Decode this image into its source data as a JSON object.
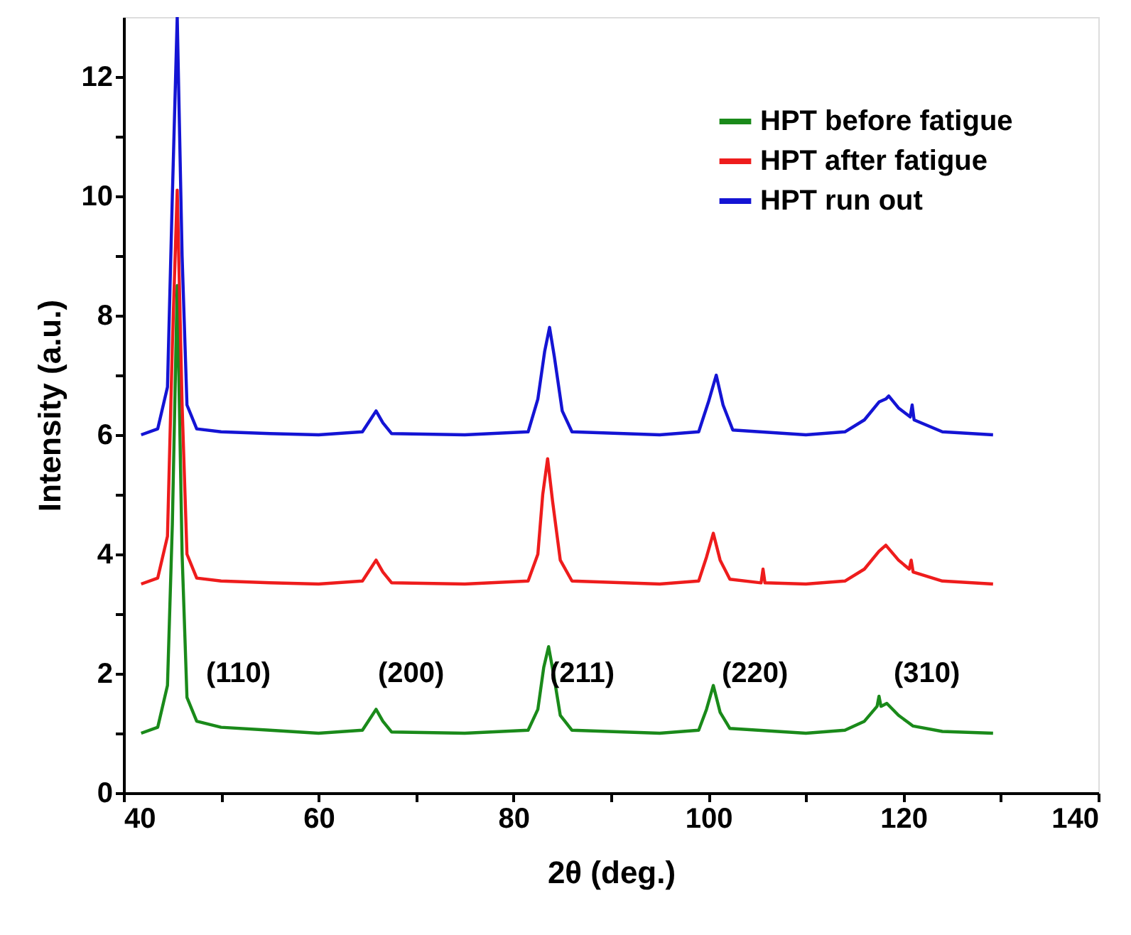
{
  "chart_data": {
    "type": "line",
    "xlabel": "2θ (deg.)",
    "ylabel": "Intensity (a.u.)",
    "xlim": [
      40,
      140
    ],
    "ylim": [
      0,
      13
    ],
    "xticks": [
      40,
      {
        "value": 50,
        "label": null
      },
      60,
      {
        "value": 70,
        "label": null
      },
      80,
      {
        "value": 90,
        "label": null
      },
      100,
      {
        "value": 110,
        "label": null
      },
      120,
      {
        "value": 130,
        "label": null
      },
      140
    ],
    "yticks": [
      0,
      {
        "value": 1,
        "label": null
      },
      2,
      {
        "value": 3,
        "label": null
      },
      4,
      {
        "value": 5,
        "label": null
      },
      6,
      {
        "value": 7,
        "label": null
      },
      8,
      {
        "value": 9,
        "label": null
      },
      10,
      {
        "value": 11,
        "label": null
      },
      12
    ],
    "grid": false,
    "legend": "top right",
    "marker": "none",
    "line_style": "solid",
    "series": [
      {
        "name": "HPT before fatigue",
        "color": "#1a8a1a",
        "x": [
          41.8,
          43.5,
          44.5,
          45.0,
          45.5,
          46.0,
          46.5,
          47.5,
          50,
          55,
          60,
          64.5,
          65.3,
          65.9,
          66.6,
          67.5,
          75,
          81.5,
          82.5,
          83.1,
          83.6,
          84.1,
          84.8,
          86,
          95,
          99,
          99.8,
          100.5,
          101.2,
          102.2,
          110,
          114,
          116,
          117.3,
          117.5,
          117.7,
          118.3,
          119.5,
          121,
          124,
          129.2
        ],
        "values": [
          1.0,
          1.1,
          1.8,
          4.5,
          8.5,
          4.0,
          1.6,
          1.2,
          1.1,
          1.05,
          1.0,
          1.05,
          1.25,
          1.4,
          1.2,
          1.02,
          1.0,
          1.05,
          1.4,
          2.1,
          2.45,
          2.0,
          1.3,
          1.05,
          1.0,
          1.05,
          1.4,
          1.8,
          1.35,
          1.08,
          1.0,
          1.05,
          1.2,
          1.45,
          1.62,
          1.45,
          1.5,
          1.3,
          1.12,
          1.03,
          1.0
        ]
      },
      {
        "name": "HPT after fatigue",
        "color": "#ee1c1c",
        "x": [
          41.8,
          43.5,
          44.5,
          45.0,
          45.5,
          46.0,
          46.5,
          47.5,
          50,
          55,
          60,
          64.5,
          65.3,
          65.9,
          66.6,
          67.5,
          75,
          81.5,
          82.5,
          83.0,
          83.5,
          84.0,
          84.8,
          86,
          95,
          99,
          99.8,
          100.5,
          101.2,
          102.2,
          105.4,
          105.6,
          105.8,
          110,
          114,
          116,
          117.5,
          118.2,
          119.5,
          120.6,
          120.8,
          121,
          124,
          129.2
        ],
        "values": [
          3.5,
          3.6,
          4.3,
          7.5,
          10.1,
          6.5,
          4.0,
          3.6,
          3.55,
          3.52,
          3.5,
          3.55,
          3.75,
          3.9,
          3.7,
          3.52,
          3.5,
          3.55,
          4.0,
          5.0,
          5.6,
          4.9,
          3.9,
          3.55,
          3.5,
          3.55,
          3.95,
          4.35,
          3.9,
          3.58,
          3.52,
          3.75,
          3.52,
          3.5,
          3.55,
          3.75,
          4.05,
          4.15,
          3.9,
          3.75,
          3.9,
          3.7,
          3.55,
          3.5
        ]
      },
      {
        "name": "HPT run out",
        "color": "#1414d4",
        "x": [
          41.8,
          43.5,
          44.5,
          45.0,
          45.5,
          46.0,
          46.5,
          47.5,
          50,
          55,
          60,
          64.5,
          65.3,
          65.9,
          66.6,
          67.5,
          75,
          81.5,
          82.5,
          83.2,
          83.7,
          84.2,
          85.0,
          86,
          95,
          99,
          100.0,
          100.8,
          101.5,
          102.5,
          110,
          114,
          116,
          117.5,
          118.2,
          118.5,
          119.5,
          120.7,
          120.9,
          121.1,
          124,
          129.2
        ],
        "values": [
          6.0,
          6.1,
          6.8,
          10.0,
          13,
          9.0,
          6.5,
          6.1,
          6.05,
          6.02,
          6.0,
          6.05,
          6.25,
          6.4,
          6.2,
          6.02,
          6.0,
          6.05,
          6.6,
          7.4,
          7.8,
          7.3,
          6.4,
          6.05,
          6.0,
          6.05,
          6.55,
          7.0,
          6.5,
          6.08,
          6.0,
          6.05,
          6.25,
          6.55,
          6.6,
          6.65,
          6.45,
          6.3,
          6.5,
          6.25,
          6.05,
          6.0
        ]
      }
    ],
    "annotations": [
      "(110)",
      "(200)",
      "(211)",
      "(220)",
      "(310)"
    ]
  }
}
